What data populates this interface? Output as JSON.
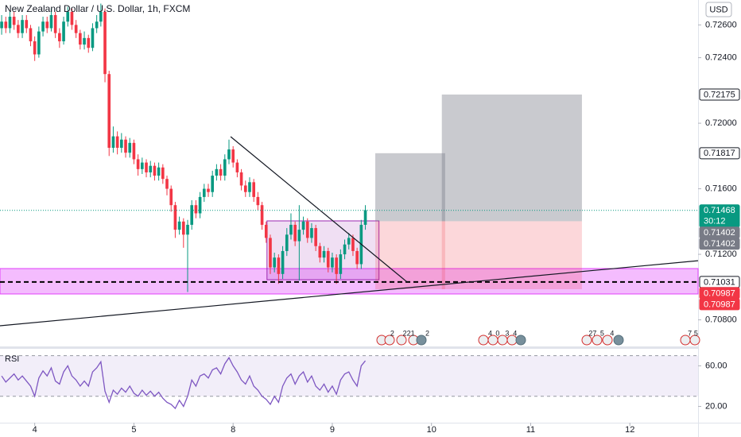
{
  "chart_data": [
    {
      "type": "candlestick",
      "title": "New Zealand Dollar / U.S. Dollar, 1h, FXCM",
      "currency": "USD",
      "up_color": "#089981",
      "down_color": "#f23645",
      "candles": [
        [
          0.7258,
          0.7266,
          0.7254,
          0.7262
        ],
        [
          0.7262,
          0.7265,
          0.7255,
          0.7258
        ],
        [
          0.7258,
          0.7268,
          0.7255,
          0.7265
        ],
        [
          0.7265,
          0.7268,
          0.7257,
          0.726
        ],
        [
          0.726,
          0.7263,
          0.7252,
          0.7255
        ],
        [
          0.7255,
          0.7266,
          0.7252,
          0.7263
        ],
        [
          0.7263,
          0.7266,
          0.7255,
          0.7258
        ],
        [
          0.7258,
          0.726,
          0.7247,
          0.725
        ],
        [
          0.725,
          0.7253,
          0.7238,
          0.7242
        ],
        [
          0.7242,
          0.7259,
          0.724,
          0.7256
        ],
        [
          0.7256,
          0.7265,
          0.7253,
          0.7262
        ],
        [
          0.7262,
          0.7265,
          0.7255,
          0.7258
        ],
        [
          0.7258,
          0.727,
          0.7256,
          0.7266
        ],
        [
          0.7266,
          0.7268,
          0.7252,
          0.7255
        ],
        [
          0.7255,
          0.7258,
          0.7246,
          0.725
        ],
        [
          0.725,
          0.7265,
          0.7248,
          0.7262
        ],
        [
          0.7262,
          0.7271,
          0.7259,
          0.7268
        ],
        [
          0.7268,
          0.727,
          0.7257,
          0.726
        ],
        [
          0.726,
          0.7263,
          0.7252,
          0.7255
        ],
        [
          0.7255,
          0.7257,
          0.7245,
          0.7248
        ],
        [
          0.7248,
          0.7256,
          0.7245,
          0.7252
        ],
        [
          0.7252,
          0.7254,
          0.7243,
          0.7246
        ],
        [
          0.7246,
          0.7261,
          0.7244,
          0.7258
        ],
        [
          0.7258,
          0.7266,
          0.7255,
          0.7262
        ],
        [
          0.7262,
          0.7273,
          0.7259,
          0.7268
        ],
        [
          0.7268,
          0.727,
          0.7225,
          0.723
        ],
        [
          0.723,
          0.7232,
          0.718,
          0.7185
        ],
        [
          0.7185,
          0.7198,
          0.7182,
          0.7192
        ],
        [
          0.7192,
          0.7195,
          0.7181,
          0.7185
        ],
        [
          0.7185,
          0.7194,
          0.7182,
          0.719
        ],
        [
          0.719,
          0.7192,
          0.7179,
          0.7182
        ],
        [
          0.7182,
          0.7191,
          0.7179,
          0.7188
        ],
        [
          0.7188,
          0.719,
          0.7175,
          0.7178
        ],
        [
          0.7178,
          0.7181,
          0.7168,
          0.7172
        ],
        [
          0.7172,
          0.7179,
          0.7169,
          0.7176
        ],
        [
          0.7176,
          0.7178,
          0.7167,
          0.717
        ],
        [
          0.717,
          0.7177,
          0.7167,
          0.7174
        ],
        [
          0.7174,
          0.7176,
          0.7165,
          0.7168
        ],
        [
          0.7168,
          0.7176,
          0.7165,
          0.7173
        ],
        [
          0.7173,
          0.7175,
          0.7163,
          0.7166
        ],
        [
          0.7166,
          0.7168,
          0.7156,
          0.716
        ],
        [
          0.716,
          0.7162,
          0.7146,
          0.715
        ],
        [
          0.715,
          0.7152,
          0.713,
          0.7135
        ],
        [
          0.7135,
          0.7143,
          0.7132,
          0.714
        ],
        [
          0.714,
          0.7142,
          0.7124,
          0.7132
        ],
        [
          0.7132,
          0.7141,
          0.7097,
          0.7138
        ],
        [
          0.7138,
          0.7153,
          0.7135,
          0.715
        ],
        [
          0.715,
          0.7153,
          0.7142,
          0.7145
        ],
        [
          0.7145,
          0.7158,
          0.7142,
          0.7155
        ],
        [
          0.7155,
          0.7163,
          0.7152,
          0.716
        ],
        [
          0.716,
          0.7163,
          0.7155,
          0.7158
        ],
        [
          0.7158,
          0.7171,
          0.7155,
          0.7168
        ],
        [
          0.7168,
          0.7175,
          0.7165,
          0.7172
        ],
        [
          0.7172,
          0.7175,
          0.7165,
          0.7168
        ],
        [
          0.7168,
          0.7181,
          0.7165,
          0.7178
        ],
        [
          0.7178,
          0.719,
          0.7175,
          0.7184
        ],
        [
          0.7184,
          0.7186,
          0.7173,
          0.7176
        ],
        [
          0.7176,
          0.7178,
          0.7167,
          0.717
        ],
        [
          0.717,
          0.7172,
          0.7159,
          0.7162
        ],
        [
          0.7162,
          0.7165,
          0.7155,
          0.7158
        ],
        [
          0.7158,
          0.7167,
          0.7155,
          0.7164
        ],
        [
          0.7164,
          0.7166,
          0.7152,
          0.7155
        ],
        [
          0.7155,
          0.7158,
          0.7147,
          0.715
        ],
        [
          0.715,
          0.7152,
          0.7135,
          0.7138
        ],
        [
          0.7138,
          0.714,
          0.7127,
          0.713
        ],
        [
          0.713,
          0.7132,
          0.7108,
          0.7112
        ],
        [
          0.7112,
          0.7121,
          0.7109,
          0.7118
        ],
        [
          0.7118,
          0.712,
          0.7102,
          0.7108
        ],
        [
          0.7108,
          0.7125,
          0.7105,
          0.7122
        ],
        [
          0.7122,
          0.7136,
          0.7119,
          0.7132
        ],
        [
          0.7132,
          0.7145,
          0.7129,
          0.7138
        ],
        [
          0.7138,
          0.714,
          0.7125,
          0.7128
        ],
        [
          0.7128,
          0.715,
          0.7104,
          0.7135
        ],
        [
          0.7135,
          0.7143,
          0.7132,
          0.714
        ],
        [
          0.714,
          0.7142,
          0.7127,
          0.713
        ],
        [
          0.713,
          0.7139,
          0.7127,
          0.7136
        ],
        [
          0.7136,
          0.7138,
          0.7122,
          0.7125
        ],
        [
          0.7125,
          0.7127,
          0.7115,
          0.7118
        ],
        [
          0.7118,
          0.7125,
          0.7115,
          0.7122
        ],
        [
          0.7122,
          0.7124,
          0.7109,
          0.7112
        ],
        [
          0.7112,
          0.7121,
          0.7109,
          0.7118
        ],
        [
          0.7118,
          0.712,
          0.7102,
          0.7108
        ],
        [
          0.7108,
          0.7123,
          0.7105,
          0.712
        ],
        [
          0.712,
          0.7129,
          0.7117,
          0.7126
        ],
        [
          0.7126,
          0.7133,
          0.7123,
          0.713
        ],
        [
          0.713,
          0.7132,
          0.7119,
          0.7122
        ],
        [
          0.7122,
          0.7124,
          0.7111,
          0.7114
        ],
        [
          0.7114,
          0.7141,
          0.7111,
          0.7138
        ],
        [
          0.7138,
          0.715,
          0.7135,
          0.7147
        ]
      ],
      "xlim": [
        -0.4,
        168.5
      ],
      "xticks": [
        {
          "value": 8,
          "label": "4"
        },
        {
          "value": 32,
          "label": "5"
        },
        {
          "value": 56,
          "label": "8"
        },
        {
          "value": 80,
          "label": "9"
        },
        {
          "value": 104,
          "label": "10"
        },
        {
          "value": 128,
          "label": "11"
        },
        {
          "value": 152,
          "label": "12"
        }
      ],
      "ylim": [
        0.70633,
        0.72752
      ],
      "yticks": [
        {
          "value": 0.726,
          "label": "0.72600"
        },
        {
          "value": 0.724,
          "label": "0.72400"
        },
        {
          "value": 0.72,
          "label": "0.72000"
        },
        {
          "value": 0.716,
          "label": "0.71600"
        },
        {
          "value": 0.712,
          "label": "0.71200"
        },
        {
          "value": 0.708,
          "label": "0.70800"
        }
      ],
      "grid": false,
      "last_price": {
        "value": 0.71468,
        "countdown": "30:12",
        "color": "#089981"
      },
      "positions": [
        {
          "from": 90.4,
          "to": 107.3,
          "entry": 0.71402,
          "target": 0.71817,
          "stop": 0.70987
        },
        {
          "from": 106.5,
          "to": 140.4,
          "entry": 0.71402,
          "target": 0.72175,
          "stop": 0.70987
        }
      ],
      "hline": 0.71031,
      "zone": {
        "top": 0.71113,
        "bottom": 0.70958,
        "color": "#e040fb"
      },
      "box": {
        "from": 64.2,
        "to": 91.3,
        "top": 0.71404,
        "bottom": 0.71045,
        "color": "#9c27b0"
      },
      "trendlines": [
        {
          "x": [
            55.4,
            98.1
          ],
          "y": [
            0.71918,
            0.71031
          ]
        },
        {
          "x": [
            -0.4,
            168.5
          ],
          "y": [
            0.70764,
            0.71161
          ]
        }
      ],
      "events": [
        {
          "x": 94.5,
          "label": "2"
        },
        {
          "x": 98.5,
          "label": "221"
        },
        {
          "x": 103,
          "label": "2"
        },
        {
          "x": 118.2,
          "label": "4"
        },
        {
          "x": 120,
          "label": "0"
        },
        {
          "x": 122.3,
          "label": "3"
        },
        {
          "x": 124.2,
          "label": "4"
        },
        {
          "x": 143,
          "label": "27"
        },
        {
          "x": 145.3,
          "label": "5"
        },
        {
          "x": 147.7,
          "label": "4"
        },
        {
          "x": 166.5,
          "label": "7"
        },
        {
          "x": 168,
          "label": "5"
        }
      ]
    },
    {
      "type": "line",
      "title": "RSI",
      "color": "#7e57c2",
      "values": [
        50,
        44,
        48,
        52,
        46,
        50,
        45,
        40,
        30,
        48,
        55,
        50,
        58,
        45,
        42,
        54,
        60,
        50,
        46,
        40,
        45,
        40,
        54,
        58,
        64,
        35,
        24,
        36,
        32,
        38,
        34,
        40,
        33,
        30,
        36,
        31,
        35,
        30,
        34,
        28,
        24,
        22,
        18,
        26,
        20,
        30,
        46,
        40,
        50,
        52,
        48,
        56,
        58,
        52,
        62,
        68,
        60,
        54,
        46,
        42,
        50,
        40,
        36,
        30,
        27,
        22,
        30,
        24,
        40,
        48,
        52,
        42,
        50,
        54,
        44,
        50,
        40,
        36,
        42,
        34,
        40,
        32,
        46,
        52,
        54,
        46,
        40,
        60,
        65
      ],
      "ylim": [
        0,
        76
      ],
      "yticks": [
        {
          "value": 60,
          "label": "60.00"
        },
        {
          "value": 20,
          "label": "20.00"
        }
      ],
      "bands": [
        70,
        30
      ]
    }
  ]
}
